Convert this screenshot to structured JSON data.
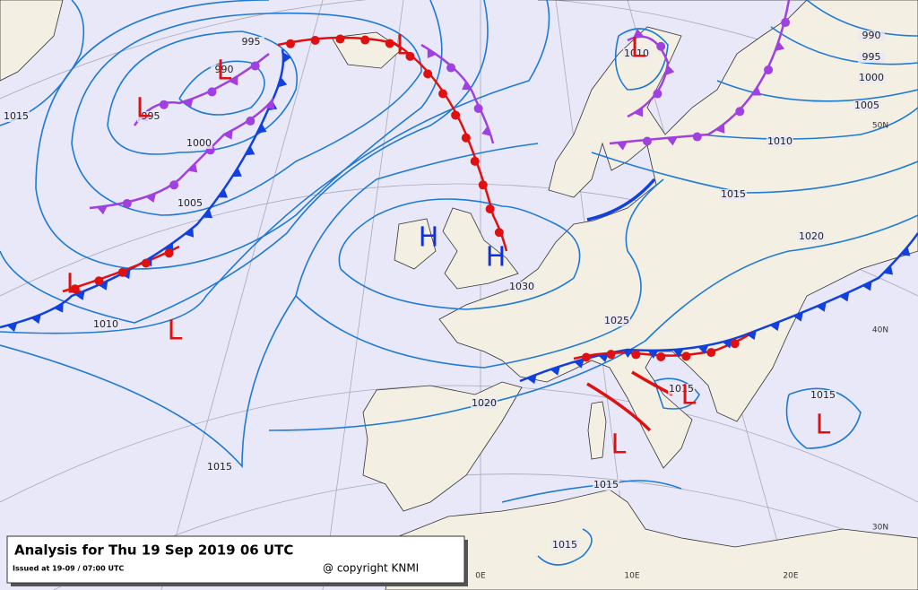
{
  "caption": {
    "title": "Analysis for Thu 19 Sep 2019 06 UTC",
    "issued": "Issued at 19-09 / 07:00 UTC",
    "copyright": "@ copyright KNMI"
  },
  "isobar_labels": [
    "995",
    "990",
    "995",
    "1000",
    "1005",
    "1015",
    "1010",
    "1015",
    "1020",
    "1030",
    "1025",
    "1015",
    "1015",
    "1015",
    "1015",
    "1020",
    "1015",
    "1010",
    "1005",
    "1000",
    "995",
    "990",
    "1010"
  ],
  "pressure_centers": [
    "L",
    "L",
    "L",
    "L",
    "L",
    "L",
    "H",
    "H",
    "L",
    "L",
    "L"
  ],
  "grid_labels": [
    "50N",
    "40N",
    "30N",
    "0E",
    "10E",
    "20E"
  ]
}
